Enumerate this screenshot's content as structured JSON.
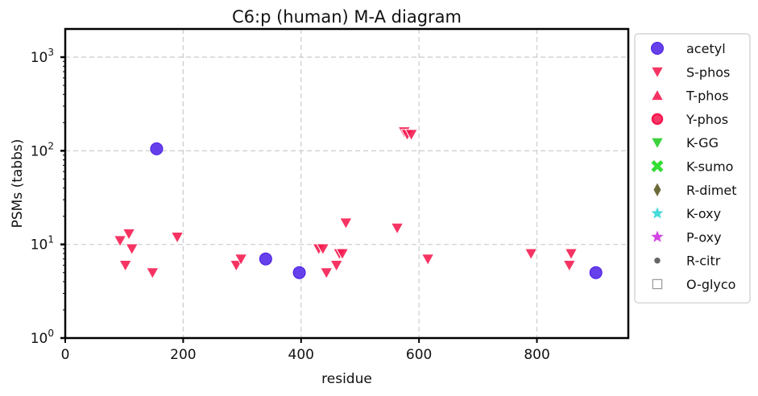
{
  "chart_data": {
    "type": "scatter",
    "title": "C6:p (human) M-A diagram",
    "xlabel": "residue",
    "ylabel": "PSMs (tabbs)",
    "xlim": [
      0,
      955
    ],
    "ylim": [
      1,
      2000
    ],
    "yscale": "log",
    "grid": true,
    "legend_position": "right-outside",
    "x_ticks": [
      {
        "value": 0,
        "label": "0"
      },
      {
        "value": 200,
        "label": "200"
      },
      {
        "value": 400,
        "label": "400"
      },
      {
        "value": 600,
        "label": "600"
      },
      {
        "value": 800,
        "label": "800"
      }
    ],
    "y_ticks": [
      {
        "value": 1,
        "base": "10",
        "exp": "0"
      },
      {
        "value": 10,
        "base": "10",
        "exp": "1"
      },
      {
        "value": 100,
        "base": "10",
        "exp": "2"
      },
      {
        "value": 1000,
        "base": "10",
        "exp": "3"
      }
    ],
    "series": [
      {
        "name": "acetyl",
        "marker": "circle",
        "color": "#4b1ee6",
        "points": [
          [
            155,
            105
          ],
          [
            340,
            7
          ],
          [
            397,
            5
          ],
          [
            900,
            5
          ]
        ]
      },
      {
        "name": "S-phos",
        "marker": "triangle-down",
        "color": "#f5184d",
        "points": [
          [
            93,
            11
          ],
          [
            102,
            6
          ],
          [
            108,
            13
          ],
          [
            113,
            9
          ],
          [
            148,
            5
          ],
          [
            190,
            12
          ],
          [
            290,
            6
          ],
          [
            298,
            7
          ],
          [
            430,
            9
          ],
          [
            437,
            9
          ],
          [
            443,
            5
          ],
          [
            460,
            6
          ],
          [
            465,
            8
          ],
          [
            470,
            8
          ],
          [
            476,
            17
          ],
          [
            563,
            15
          ],
          [
            575,
            160
          ],
          [
            580,
            150
          ],
          [
            587,
            150
          ],
          [
            615,
            7
          ],
          [
            790,
            8
          ],
          [
            855,
            6
          ],
          [
            858,
            8
          ]
        ]
      },
      {
        "name": "T-phos",
        "marker": "triangle-up",
        "color": "#f5184d",
        "points": []
      },
      {
        "name": "Y-phos",
        "marker": "circle-ring",
        "color": "#f5184d",
        "points": []
      },
      {
        "name": "K-GG",
        "marker": "triangle-down",
        "color": "#22cc22",
        "points": []
      },
      {
        "name": "K-sumo",
        "marker": "x",
        "color": "#33dd33",
        "points": []
      },
      {
        "name": "R-dimet",
        "marker": "diamond",
        "color": "#6b6b3a",
        "points": []
      },
      {
        "name": "K-oxy",
        "marker": "star",
        "color": "#33d6d6",
        "points": []
      },
      {
        "name": "P-oxy",
        "marker": "star",
        "color": "#cc33dd",
        "points": []
      },
      {
        "name": "R-citr",
        "marker": "small-circle",
        "color": "#666666",
        "points": []
      },
      {
        "name": "O-glyco",
        "marker": "square-open",
        "color": "#999999",
        "points": []
      }
    ]
  }
}
